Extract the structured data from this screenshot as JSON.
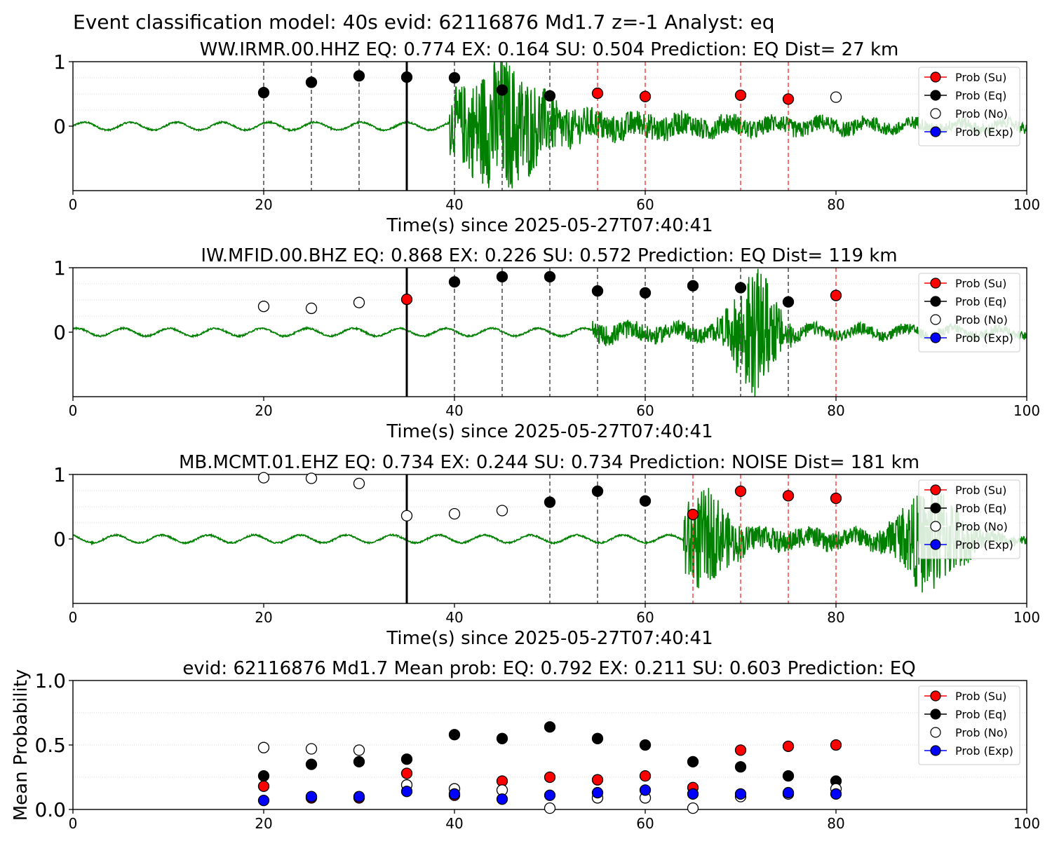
{
  "figure_title": "Event classification model: 40s evid: 62116876 Md1.7 z=-1 Analyst: eq",
  "legend_labels": {
    "su": "Prob (Su)",
    "eq": "Prob (Eq)",
    "no": "Prob (No)",
    "exp": "Prob (Exp)"
  },
  "colors": {
    "su": "#ff0000",
    "eq": "#000000",
    "no": "#ffffff",
    "exp": "#0000ff",
    "waveform": "#008000",
    "waveform_faded": "#b8dcb8",
    "eq_window_line": "#555555",
    "su_window_line": "#ff4d4d",
    "pick_line": "#000000"
  },
  "chart_data": [
    {
      "type": "scatter",
      "title": "WW.IRMR.00.HHZ   EQ: 0.774  EX: 0.164  SU: 0.504   Prediction: EQ    Dist= 27 km",
      "xlabel": "Time(s) since 2025-05-27T07:40:41",
      "ylabel": "",
      "xlim": [
        0,
        100
      ],
      "ylim": [
        -1,
        1
      ],
      "xticks": [
        "0",
        "20",
        "40",
        "60",
        "80",
        "100"
      ],
      "yticks": [
        "0",
        "1"
      ],
      "grid": "horizontal dotted",
      "legend_position": "top-right",
      "pick_time": 35,
      "signal_onset": 39.5,
      "waveform_amplitude": "strong near onset, decaying",
      "window_lines_eq": [
        20,
        25,
        30,
        40,
        45,
        50
      ],
      "window_lines_su": [
        55,
        60,
        70,
        75
      ],
      "series": [
        {
          "name": "Prob (Su)",
          "points": [
            [
              55,
              0.51
            ],
            [
              60,
              0.46
            ],
            [
              70,
              0.48
            ],
            [
              75,
              0.42
            ]
          ]
        },
        {
          "name": "Prob (Eq)",
          "points": [
            [
              20,
              0.52
            ],
            [
              25,
              0.68
            ],
            [
              30,
              0.78
            ],
            [
              35,
              0.76
            ],
            [
              40,
              0.75
            ],
            [
              45,
              0.56
            ],
            [
              50,
              0.47
            ]
          ]
        },
        {
          "name": "Prob (No)",
          "points": [
            [
              80,
              0.45
            ]
          ]
        },
        {
          "name": "Prob (Exp)",
          "points": []
        }
      ]
    },
    {
      "type": "scatter",
      "title": "IW.MFID.00.BHZ   EQ: 0.868  EX: 0.226  SU: 0.572   Prediction: EQ    Dist= 119 km",
      "xlabel": "Time(s) since 2025-05-27T07:40:41",
      "ylabel": "",
      "xlim": [
        0,
        100
      ],
      "ylim": [
        -1,
        1
      ],
      "xticks": [
        "0",
        "20",
        "40",
        "60",
        "80",
        "100"
      ],
      "yticks": [
        "0",
        "1"
      ],
      "grid": "horizontal dotted",
      "legend_position": "top-right",
      "pick_time": 35,
      "signal_onset": 54.5,
      "window_lines_eq": [
        40,
        45,
        50,
        55,
        60,
        65,
        70,
        75
      ],
      "window_lines_su": [
        80
      ],
      "series": [
        {
          "name": "Prob (Su)",
          "points": [
            [
              35,
              0.51
            ],
            [
              80,
              0.57
            ]
          ]
        },
        {
          "name": "Prob (Eq)",
          "points": [
            [
              40,
              0.78
            ],
            [
              45,
              0.86
            ],
            [
              50,
              0.86
            ],
            [
              55,
              0.64
            ],
            [
              60,
              0.61
            ],
            [
              65,
              0.72
            ],
            [
              70,
              0.69
            ],
            [
              75,
              0.47
            ]
          ]
        },
        {
          "name": "Prob (No)",
          "points": [
            [
              20,
              0.4
            ],
            [
              25,
              0.37
            ],
            [
              30,
              0.46
            ]
          ]
        },
        {
          "name": "Prob (Exp)",
          "points": []
        }
      ]
    },
    {
      "type": "scatter",
      "title": "MB.MCMT.01.EHZ   EQ: 0.734  EX: 0.244  SU: 0.734   Prediction: NOISE    Dist= 181 km",
      "xlabel": "Time(s) since 2025-05-27T07:40:41",
      "ylabel": "",
      "xlim": [
        0,
        100
      ],
      "ylim": [
        -1,
        1
      ],
      "xticks": [
        "0",
        "20",
        "40",
        "60",
        "80",
        "100"
      ],
      "yticks": [
        "0",
        "1"
      ],
      "grid": "horizontal dotted",
      "legend_position": "top-right",
      "pick_time": 35,
      "signal_onset": 64,
      "window_lines_eq": [
        50,
        55,
        60
      ],
      "window_lines_su": [
        65,
        70,
        75,
        80
      ],
      "series": [
        {
          "name": "Prob (Su)",
          "points": [
            [
              65,
              0.38
            ],
            [
              70,
              0.74
            ],
            [
              75,
              0.67
            ],
            [
              80,
              0.63
            ]
          ]
        },
        {
          "name": "Prob (Eq)",
          "points": [
            [
              50,
              0.57
            ],
            [
              55,
              0.74
            ],
            [
              60,
              0.59
            ]
          ]
        },
        {
          "name": "Prob (No)",
          "points": [
            [
              20,
              0.95
            ],
            [
              25,
              0.94
            ],
            [
              30,
              0.86
            ],
            [
              35,
              0.36
            ],
            [
              40,
              0.39
            ],
            [
              45,
              0.44
            ]
          ]
        },
        {
          "name": "Prob (Exp)",
          "points": []
        }
      ]
    },
    {
      "type": "scatter",
      "title": "evid: 62116876  Md1.7   Mean prob:   EQ: 0.792  EX: 0.211  SU: 0.603   Prediction: EQ",
      "xlabel": "",
      "ylabel": "Mean Probability",
      "xlim": [
        0,
        100
      ],
      "ylim": [
        0,
        1
      ],
      "xticks": [
        "0",
        "20",
        "40",
        "60",
        "80",
        "100"
      ],
      "yticks": [
        "0.0",
        "0.5",
        "1.0"
      ],
      "grid": "horizontal dotted",
      "legend_position": "top-right",
      "series": [
        {
          "name": "Prob (Su)",
          "points": [
            [
              20,
              0.18
            ],
            [
              25,
              0.09
            ],
            [
              30,
              0.09
            ],
            [
              35,
              0.28
            ],
            [
              40,
              0.11
            ],
            [
              45,
              0.22
            ],
            [
              50,
              0.25
            ],
            [
              55,
              0.23
            ],
            [
              60,
              0.26
            ],
            [
              65,
              0.17
            ],
            [
              70,
              0.46
            ],
            [
              75,
              0.49
            ],
            [
              80,
              0.5
            ]
          ]
        },
        {
          "name": "Prob (Eq)",
          "points": [
            [
              20,
              0.26
            ],
            [
              25,
              0.35
            ],
            [
              30,
              0.37
            ],
            [
              35,
              0.39
            ],
            [
              40,
              0.58
            ],
            [
              45,
              0.55
            ],
            [
              50,
              0.64
            ],
            [
              55,
              0.55
            ],
            [
              60,
              0.5
            ],
            [
              65,
              0.37
            ],
            [
              70,
              0.33
            ],
            [
              75,
              0.26
            ],
            [
              80,
              0.22
            ]
          ]
        },
        {
          "name": "Prob (No)",
          "points": [
            [
              20,
              0.48
            ],
            [
              25,
              0.47
            ],
            [
              30,
              0.46
            ],
            [
              35,
              0.19
            ],
            [
              40,
              0.16
            ],
            [
              45,
              0.15
            ],
            [
              50,
              0.01
            ],
            [
              55,
              0.09
            ],
            [
              60,
              0.09
            ],
            [
              65,
              0.01
            ],
            [
              70,
              0.1
            ],
            [
              75,
              0.12
            ],
            [
              80,
              0.16
            ]
          ]
        },
        {
          "name": "Prob (Exp)",
          "points": [
            [
              20,
              0.07
            ],
            [
              25,
              0.1
            ],
            [
              30,
              0.1
            ],
            [
              35,
              0.14
            ],
            [
              40,
              0.12
            ],
            [
              45,
              0.08
            ],
            [
              50,
              0.11
            ],
            [
              55,
              0.13
            ],
            [
              60,
              0.15
            ],
            [
              65,
              0.12
            ],
            [
              70,
              0.12
            ],
            [
              75,
              0.13
            ],
            [
              80,
              0.12
            ]
          ]
        }
      ]
    }
  ]
}
